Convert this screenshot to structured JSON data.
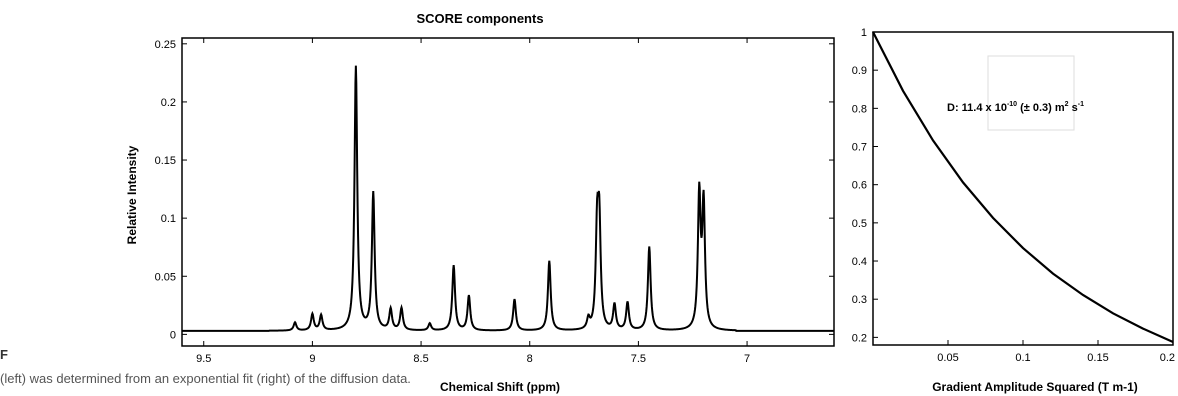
{
  "caption": {
    "fragment_1": "F",
    "fragment_2": "(left) was determined from an exponential fit (right) of the diffusion data."
  },
  "chart_data": [
    {
      "type": "line",
      "title": "SCORE components",
      "xlabel": "Chemical Shift (ppm)",
      "ylabel": "Relative Intensity",
      "xlim": [
        9.6,
        6.6
      ],
      "ylim": [
        -0.01,
        0.255
      ],
      "x_reversed": true,
      "xticks": [
        "9.5",
        "9",
        "8.5",
        "8",
        "7.5",
        "7"
      ],
      "yticks": [
        "0",
        "0.05",
        "0.1",
        "0.15",
        "0.2",
        "0.25"
      ],
      "grid": false,
      "baseline": 0.003,
      "peaks": [
        {
          "x": 9.08,
          "height": 0.007
        },
        {
          "x": 9.0,
          "height": 0.014
        },
        {
          "x": 8.96,
          "height": 0.013
        },
        {
          "x": 8.8,
          "height": 0.227
        },
        {
          "x": 8.72,
          "height": 0.118
        },
        {
          "x": 8.64,
          "height": 0.018
        },
        {
          "x": 8.59,
          "height": 0.019
        },
        {
          "x": 8.46,
          "height": 0.006
        },
        {
          "x": 8.35,
          "height": 0.056
        },
        {
          "x": 8.28,
          "height": 0.03
        },
        {
          "x": 8.07,
          "height": 0.027
        },
        {
          "x": 7.91,
          "height": 0.06
        },
        {
          "x": 7.73,
          "height": 0.009
        },
        {
          "x": 7.69,
          "height": 0.082
        },
        {
          "x": 7.68,
          "height": 0.087
        },
        {
          "x": 7.61,
          "height": 0.022
        },
        {
          "x": 7.55,
          "height": 0.024
        },
        {
          "x": 7.45,
          "height": 0.072
        },
        {
          "x": 7.22,
          "height": 0.115
        },
        {
          "x": 7.2,
          "height": 0.107
        }
      ]
    },
    {
      "type": "line",
      "title": "",
      "xlabel": "Gradient Amplitude Squared (T m-1)",
      "ylabel": "",
      "xlim": [
        0.0,
        0.2
      ],
      "ylim": [
        0.18,
        1.0
      ],
      "xticks": [
        "0.05",
        "0.1",
        "0.15",
        "0.2"
      ],
      "yticks": [
        "0.2",
        "0.3",
        "0.4",
        "0.5",
        "0.6",
        "0.7",
        "0.8",
        "0.9",
        "1"
      ],
      "grid": false,
      "series": [
        {
          "x": [
            0.0,
            0.02,
            0.04,
            0.06,
            0.08,
            0.1,
            0.12,
            0.14,
            0.16,
            0.18,
            0.2
          ],
          "y": [
            1.0,
            0.846,
            0.716,
            0.606,
            0.513,
            0.434,
            0.367,
            0.311,
            0.263,
            0.223,
            0.188
          ]
        }
      ],
      "annotation": {
        "prefix": "D: 11.4 x 10",
        "exp1": "-10",
        "middle": " (± 0.3) m",
        "exp2": "2",
        "mid2": " s",
        "exp3": "-1"
      }
    }
  ]
}
